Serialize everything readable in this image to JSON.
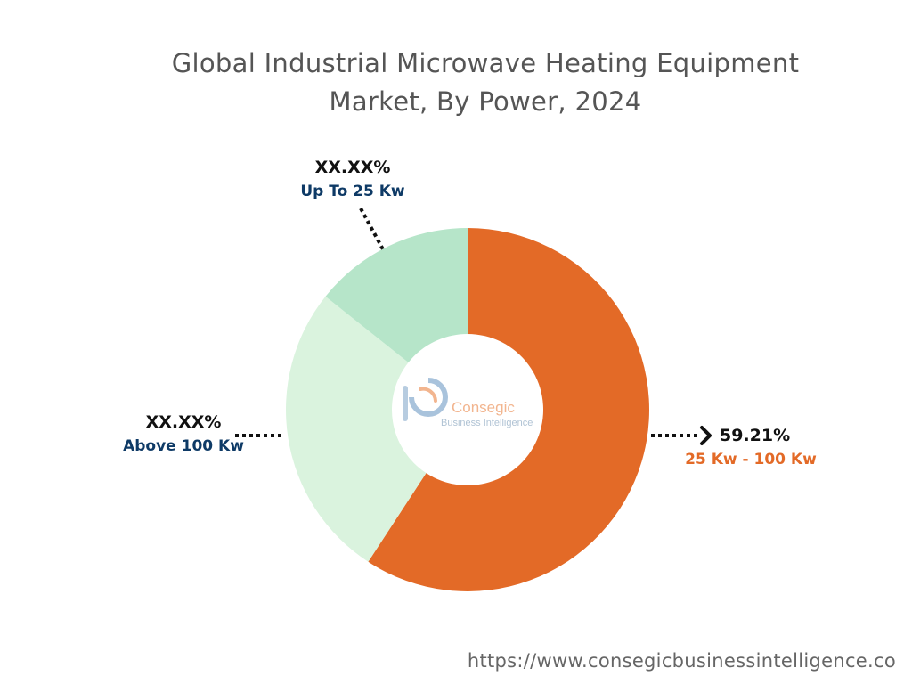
{
  "title_lines": [
    "Global Industrial Microwave Heating Equipment",
    "Market, By Power, 2024"
  ],
  "chart_data": {
    "type": "pie",
    "variant": "donut",
    "title": "Global Industrial Microwave Heating Equipment Market, By Power, 2024",
    "categories": [
      "25 Kw - 100 Kw",
      "Above 100 Kw",
      "Up To 25 Kw"
    ],
    "values": [
      59.21,
      26.5,
      14.29
    ],
    "labels": [
      "59.21%",
      "XX.XX%",
      "XX.XX%"
    ],
    "colors": [
      "#e36a27",
      "#daf3de",
      "#b6e5c9"
    ],
    "label_colors": [
      "#e36a27",
      "#0e3a66",
      "#0e3a66"
    ]
  },
  "logo": {
    "name": "Consegic",
    "tagline": "Business Intelligence",
    "mark": "b"
  },
  "footer_url": "https://www.consegicbusinessintelligence.co"
}
